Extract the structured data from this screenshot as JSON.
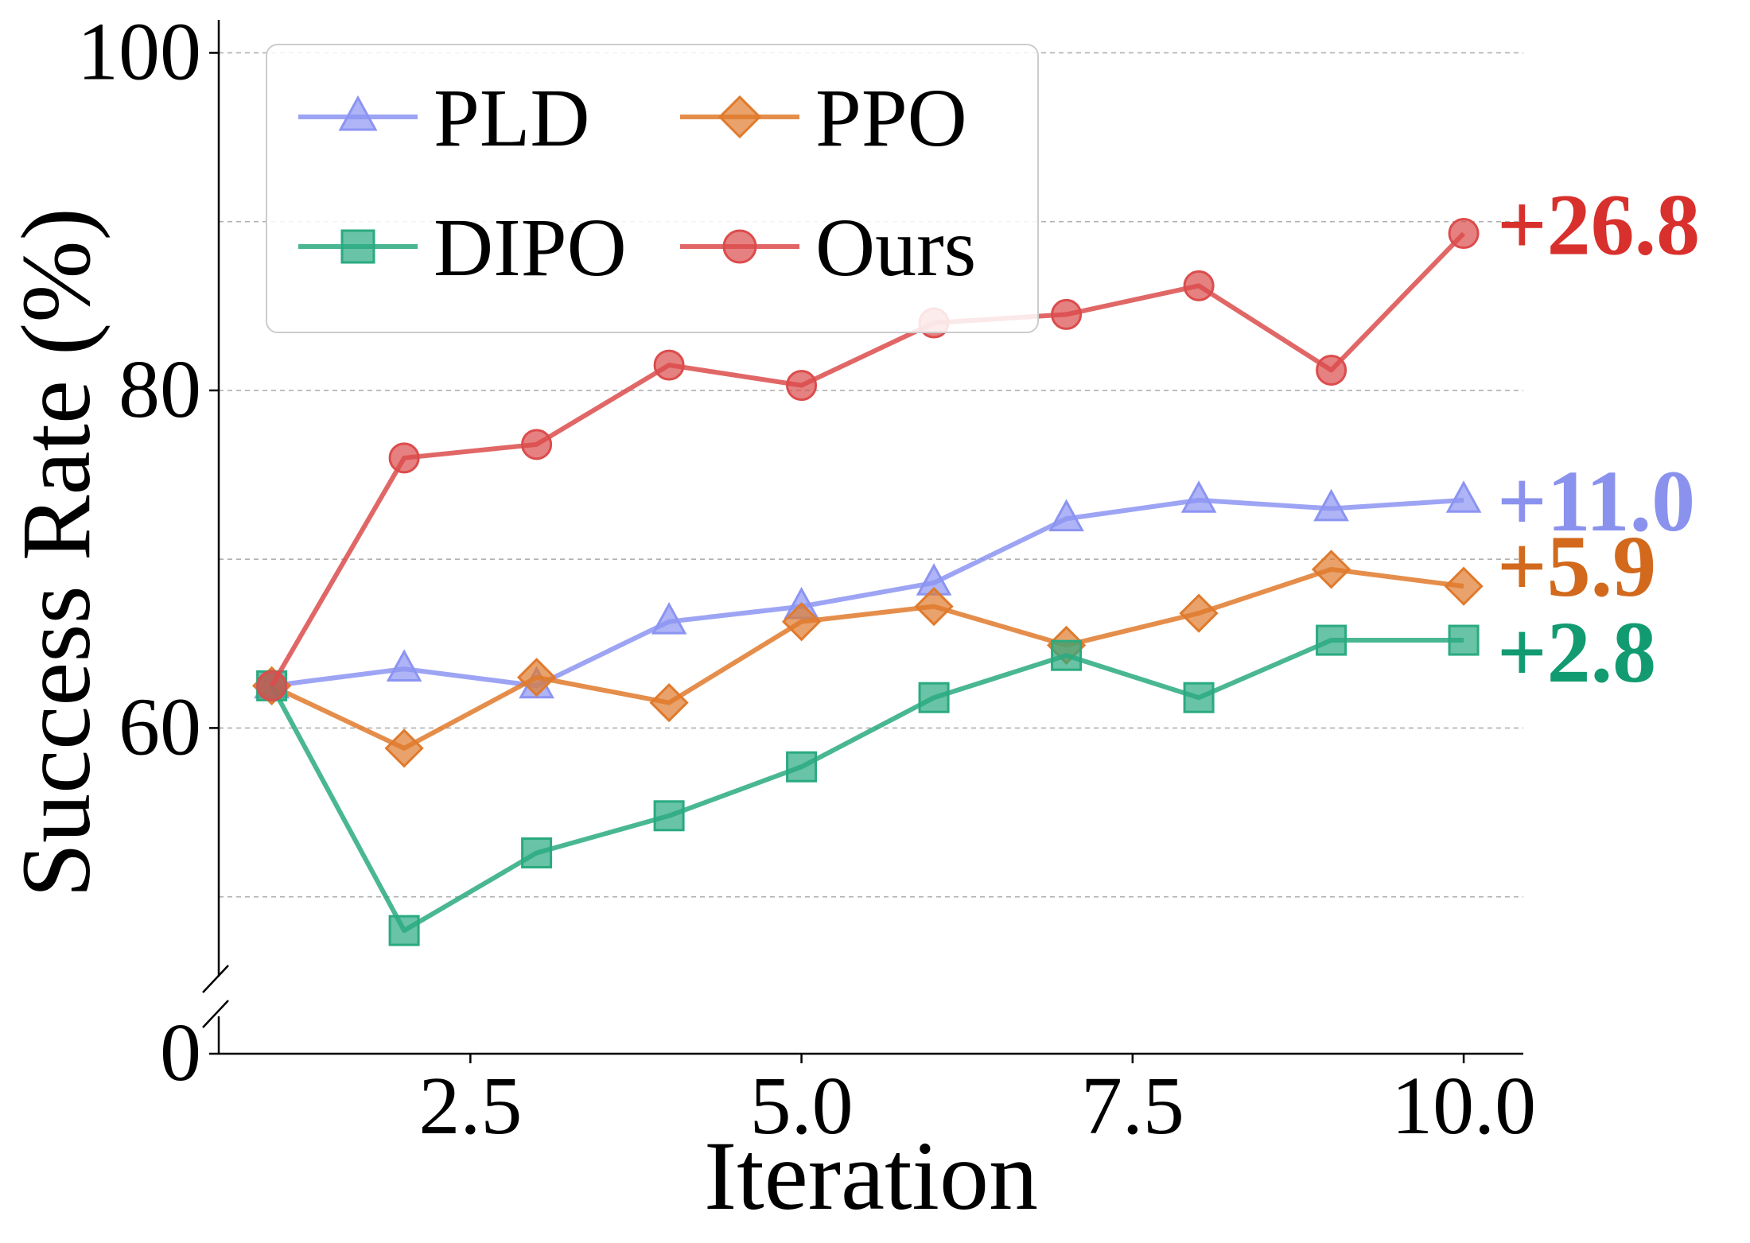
{
  "chart_data": {
    "type": "line",
    "xlabel": "Iteration",
    "ylabel": "Success Rate (%)",
    "x": [
      1,
      2,
      3,
      4,
      5,
      6,
      7,
      8,
      9,
      10
    ],
    "xlim": [
      0.6,
      10.45
    ],
    "ylim": [
      0,
      102
    ],
    "y_axis_break": {
      "lower": [
        0,
        0
      ],
      "upper": [
        44,
        102
      ]
    },
    "x_ticks": [
      "2.5",
      "5.0",
      "7.5",
      "10.0"
    ],
    "x_tick_values": [
      2.5,
      5.0,
      7.5,
      10.0
    ],
    "y_ticks": [
      "0",
      "60",
      "80",
      "100"
    ],
    "y_tick_values": [
      0,
      60,
      80,
      100
    ],
    "grid": "horizontal dashed",
    "legend_position": "top-left",
    "series": [
      {
        "name": "PLD",
        "marker": "triangle",
        "color": "#8c94f2",
        "values": [
          62.5,
          63.5,
          62.5,
          66.3,
          67.2,
          68.6,
          72.4,
          73.5,
          73.0,
          73.5
        ],
        "gain_label": "+11.0",
        "label_color": "#8a92ee"
      },
      {
        "name": "PPO",
        "marker": "diamond",
        "color": "#e07a2c",
        "values": [
          62.5,
          58.8,
          63.0,
          61.5,
          66.3,
          67.2,
          64.9,
          66.8,
          69.4,
          68.4
        ],
        "gain_label": "+5.9",
        "label_color": "#d2691c"
      },
      {
        "name": "DIPO",
        "marker": "square",
        "color": "#2aaa80",
        "values": [
          62.5,
          48.0,
          52.6,
          54.8,
          57.7,
          61.8,
          64.3,
          61.8,
          65.2,
          65.2
        ],
        "gain_label": "+2.8",
        "label_color": "#129b70"
      },
      {
        "name": "Ours",
        "marker": "circle",
        "color": "#dc4c4c",
        "values": [
          62.5,
          76.0,
          76.8,
          81.5,
          80.3,
          84.0,
          84.5,
          86.2,
          81.2,
          89.3
        ],
        "gain_label": "+26.8",
        "label_color": "#d8302c"
      }
    ]
  }
}
